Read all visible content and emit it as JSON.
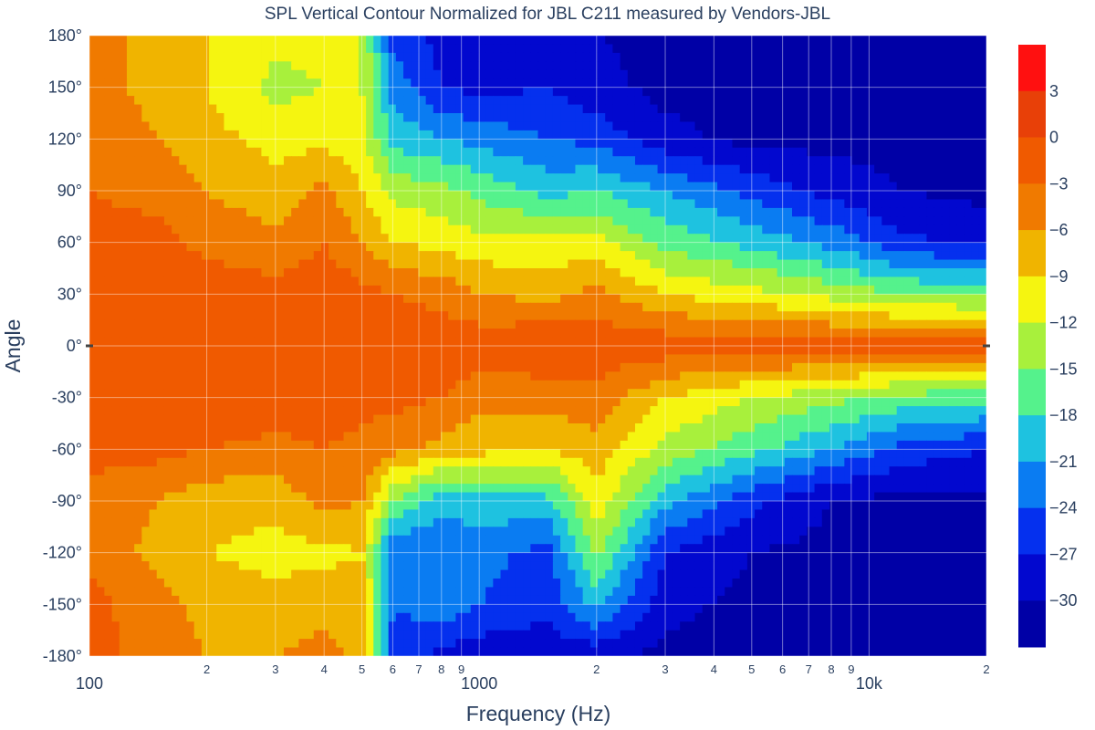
{
  "chart_data": {
    "type": "heatmap",
    "subtype": "filled-contour",
    "title": "SPL Vertical Contour Normalized for JBL C211 measured by Vendors-JBL",
    "xlabel": "Frequency (Hz)",
    "ylabel": "Angle",
    "x_scale": "log",
    "xlim": [
      100,
      20000
    ],
    "ylim": [
      -180,
      180
    ],
    "x_major_ticks": [
      {
        "value": 100,
        "label": "100"
      },
      {
        "value": 1000,
        "label": "1000"
      },
      {
        "value": 10000,
        "label": "10k"
      }
    ],
    "x_minor_ticks": [
      {
        "value": 200,
        "label": "2"
      },
      {
        "value": 300,
        "label": "3"
      },
      {
        "value": 400,
        "label": "4"
      },
      {
        "value": 500,
        "label": "5"
      },
      {
        "value": 600,
        "label": "6"
      },
      {
        "value": 700,
        "label": "7"
      },
      {
        "value": 800,
        "label": "8"
      },
      {
        "value": 900,
        "label": "9"
      },
      {
        "value": 2000,
        "label": "2"
      },
      {
        "value": 3000,
        "label": "3"
      },
      {
        "value": 4000,
        "label": "4"
      },
      {
        "value": 5000,
        "label": "5"
      },
      {
        "value": 6000,
        "label": "6"
      },
      {
        "value": 7000,
        "label": "7"
      },
      {
        "value": 8000,
        "label": "8"
      },
      {
        "value": 9000,
        "label": "9"
      },
      {
        "value": 20000,
        "label": "2"
      }
    ],
    "y_ticks": [
      {
        "value": 180,
        "label": "180°"
      },
      {
        "value": 150,
        "label": "150°"
      },
      {
        "value": 120,
        "label": "120°"
      },
      {
        "value": 90,
        "label": "90°"
      },
      {
        "value": 60,
        "label": "60°"
      },
      {
        "value": 30,
        "label": "30°"
      },
      {
        "value": 0,
        "label": "0°"
      },
      {
        "value": -30,
        "label": "-30°"
      },
      {
        "value": -60,
        "label": "-60°"
      },
      {
        "value": -90,
        "label": "-90°"
      },
      {
        "value": -120,
        "label": "-120°"
      },
      {
        "value": -150,
        "label": "-150°"
      },
      {
        "value": -180,
        "label": "-180°"
      }
    ],
    "colorbar": {
      "levels": [
        6,
        3,
        0,
        -3,
        -6,
        -9,
        -12,
        -15,
        -18,
        -21,
        -24,
        -27,
        -30,
        -33
      ],
      "tick_labels": [
        "3",
        "0",
        "−3",
        "−6",
        "−9",
        "−12",
        "−15",
        "−18",
        "−21",
        "−24",
        "−27",
        "−30"
      ],
      "tick_values": [
        3,
        0,
        -3,
        -6,
        -9,
        -12,
        -15,
        -18,
        -21,
        -24,
        -27,
        -30
      ],
      "colors": [
        "#ff1010",
        "#e84008",
        "#f05a00",
        "#f07a00",
        "#f0b400",
        "#f5f510",
        "#a8f03c",
        "#55f28c",
        "#1ec2e0",
        "#0a7cf2",
        "#0530ee",
        "#0208cf",
        "#0000a6"
      ]
    },
    "grid": true,
    "approx_contours_db": {
      "description": "approximate normalized SPL (dB) by frequency (Hz) and angle (deg), read from colors",
      "freq": [
        100,
        150,
        200,
        300,
        400,
        500,
        600,
        800,
        1000,
        1500,
        2000,
        3000,
        5000,
        8000,
        12000,
        20000
      ],
      "angle": [
        180,
        150,
        120,
        90,
        60,
        30,
        0,
        -30,
        -60,
        -90,
        -120,
        -150,
        -180
      ],
      "values": [
        [
          -5,
          -7,
          -9,
          -11,
          -11,
          -12,
          -25,
          -28,
          -30,
          -29,
          -30,
          -31,
          -31,
          -31,
          -31,
          -31
        ],
        [
          -5,
          -7,
          -9,
          -13,
          -12,
          -12,
          -22,
          -27,
          -28,
          -27,
          -29,
          -31,
          -31,
          -31,
          -31,
          -31
        ],
        [
          -4,
          -6,
          -8,
          -10,
          -10,
          -11,
          -19,
          -21,
          -22,
          -24,
          -25,
          -29,
          -31,
          -31,
          -31,
          -31
        ],
        [
          -3,
          -4,
          -6,
          -8,
          -5,
          -9,
          -13,
          -14,
          -16,
          -19,
          -18,
          -21,
          -25,
          -28,
          -30,
          -31
        ],
        [
          -2,
          -2,
          -4,
          -5,
          -3,
          -6,
          -9,
          -10,
          -11,
          -11,
          -11,
          -16,
          -19,
          -22,
          -26,
          -28
        ],
        [
          -1,
          -1,
          -1,
          -2,
          -1,
          -2,
          -3,
          -4,
          -6,
          -7,
          -5,
          -9,
          -11,
          -13,
          -15,
          -16
        ],
        [
          -1,
          -1,
          0,
          0,
          0,
          -1,
          -1,
          -1,
          -1,
          0,
          -1,
          -1,
          -1,
          -1,
          -1,
          -1
        ],
        [
          -1,
          -1,
          0,
          -1,
          -1,
          -2,
          -2,
          -3,
          -5,
          -5,
          -4,
          -9,
          -12,
          -14,
          -16,
          -17
        ],
        [
          -2,
          -2,
          -3,
          -4,
          -3,
          -4,
          -5,
          -7,
          -8,
          -9,
          -7,
          -13,
          -17,
          -21,
          -25,
          -27
        ],
        [
          -4,
          -6,
          -8,
          -8,
          -5,
          -6,
          -15,
          -20,
          -19,
          -19,
          -10,
          -20,
          -26,
          -30,
          -31,
          -31
        ],
        [
          -4,
          -7,
          -9,
          -10,
          -10,
          -9,
          -24,
          -24,
          -23,
          -25,
          -14,
          -27,
          -30,
          -31,
          -31,
          -31
        ],
        [
          -2,
          -5,
          -7,
          -8,
          -7,
          -7,
          -24,
          -22,
          -24,
          -26,
          -20,
          -29,
          -31,
          -31,
          -31,
          -31
        ],
        [
          -2,
          -4,
          -6,
          -6,
          -5,
          -7,
          -25,
          -28,
          -29,
          -29,
          -29,
          -31,
          -31,
          -31,
          -31,
          -31
        ]
      ]
    }
  }
}
